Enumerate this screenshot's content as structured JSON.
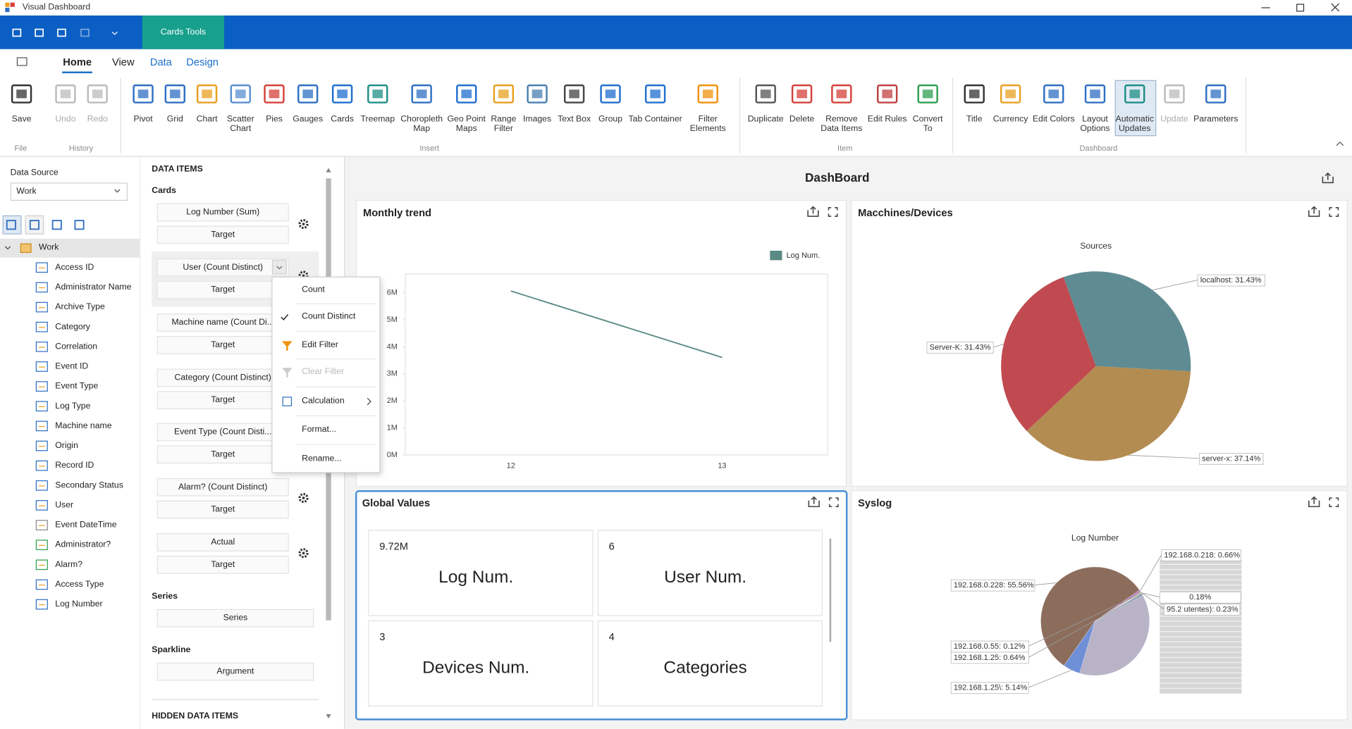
{
  "window": {
    "title": "Visual Dashboard"
  },
  "ribbon": {
    "context_tab": "Cards Tools",
    "tabs": [
      "Home",
      "View",
      "Data",
      "Design"
    ],
    "groups": [
      {
        "label": "File",
        "buttons": [
          "Save"
        ]
      },
      {
        "label": "History",
        "buttons": [
          "Undo",
          "Redo"
        ]
      },
      {
        "label": "Insert",
        "buttons": [
          "Pivot",
          "Grid",
          "Chart",
          "Scatter\nChart",
          "Pies",
          "Gauges",
          "Cards",
          "Treemap",
          "Choropleth\nMap",
          "Geo Point\nMaps",
          "Range\nFilter",
          "Images",
          "Text Box",
          "Group",
          "Tab Container",
          "Filter\nElements"
        ]
      },
      {
        "label": "Item",
        "buttons": [
          "Duplicate",
          "Delete",
          "Remove\nData Items",
          "Edit Rules",
          "Convert\nTo"
        ]
      },
      {
        "label": "Dashboard",
        "buttons": [
          "Title",
          "Currency",
          "Edit Colors",
          "Layout\nOptions",
          "Automatic\nUpdates",
          "Update",
          "Parameters"
        ]
      }
    ]
  },
  "data_source": {
    "label": "Data Source",
    "value": "Work"
  },
  "tree": {
    "root": "Work",
    "fields": [
      "Access ID",
      "Administrator Name",
      "Archive Type",
      "Category",
      "Correlation",
      "Event ID",
      "Event Type",
      "Log Type",
      "Machine name",
      "Origin",
      "Record ID",
      "Secondary Status",
      "User",
      "Event DateTime",
      "Administrator?",
      "Alarm?",
      "Access Type",
      "Log Number"
    ]
  },
  "data_items": {
    "title": "DATA ITEMS",
    "cards_label": "Cards",
    "cards": [
      [
        "Log Number (Sum)",
        "Target"
      ],
      [
        "User (Count Distinct)",
        "Target"
      ],
      [
        "Machine name (Count Di...",
        "Target"
      ],
      [
        "Category (Count Distinct)",
        "Target"
      ],
      [
        "Event Type (Count Disti...",
        "Target"
      ],
      [
        "Alarm? (Count Distinct)",
        "Target"
      ],
      [
        "Actual",
        "Target"
      ]
    ],
    "series_label": "Series",
    "series_box": "Series",
    "sparkline_label": "Sparkline",
    "sparkline_box": "Argument",
    "hidden_label": "HIDDEN DATA ITEMS"
  },
  "context_menu": {
    "items": [
      "Count",
      "Count Distinct",
      "Edit Filter",
      "Clear Filter",
      "Calculation",
      "Format...",
      "Rename..."
    ]
  },
  "dashboard": {
    "title": "DashBoard"
  },
  "cards_panel": {
    "title": "Global Values",
    "cards": [
      {
        "value": "9.72M",
        "label": "Log Num."
      },
      {
        "value": "6",
        "label": "User Num."
      },
      {
        "value": "3",
        "label": "Devices Num."
      },
      {
        "value": "4",
        "label": "Categories"
      }
    ]
  },
  "chart_data": [
    {
      "type": "line",
      "title": "Monthly trend",
      "categories": [
        "12",
        "13"
      ],
      "series": [
        {
          "name": "Log Num.",
          "color": "#5b8a84",
          "values": [
            6070000,
            3610000
          ]
        }
      ],
      "ylim": [
        0,
        6700000
      ],
      "yticks": [
        {
          "value": 0,
          "label": "0M"
        },
        {
          "value": 1000000,
          "label": "1M"
        },
        {
          "value": 2000000,
          "label": "2M"
        },
        {
          "value": 3000000,
          "label": "3M"
        },
        {
          "value": 4000000,
          "label": "4M"
        },
        {
          "value": 5000000,
          "label": "5M"
        },
        {
          "value": 6000000,
          "label": "6M"
        }
      ],
      "grid": false,
      "legend": "top-right"
    },
    {
      "type": "pie",
      "title": "Macchines/Devices",
      "subtitle": "Sources",
      "values": [
        31.43,
        37.14,
        31.43
      ],
      "value_labels": [
        "localhost: 31.43%",
        "server-x: 37.14%",
        "Server-K: 31.43%"
      ],
      "colors": [
        "#5f8c92",
        "#b38c52",
        "#c14a50"
      ]
    },
    {
      "type": "pie",
      "title": "Syslog",
      "subtitle": "Log Number",
      "values": [
        5.14,
        55.56,
        0.66,
        0.23,
        0.18,
        0.12,
        0.64
      ],
      "value_labels": [
        "192.168.1.25\\: 5.14%",
        "192.168.0.228: 55.56%",
        "192.168.0.218: 0.66%",
        "95.2 utentes): 0.23%",
        "0.18%",
        "192.168.0.55: 0.12%",
        "192.168.1.25: 0.64%"
      ],
      "colors": [
        "#6f8fd6",
        "#8c6d5c",
        "#b07fc0",
        "#c8a448",
        "#5fa7a0",
        "#d98aa0",
        "#7a9cb5"
      ]
    }
  ]
}
